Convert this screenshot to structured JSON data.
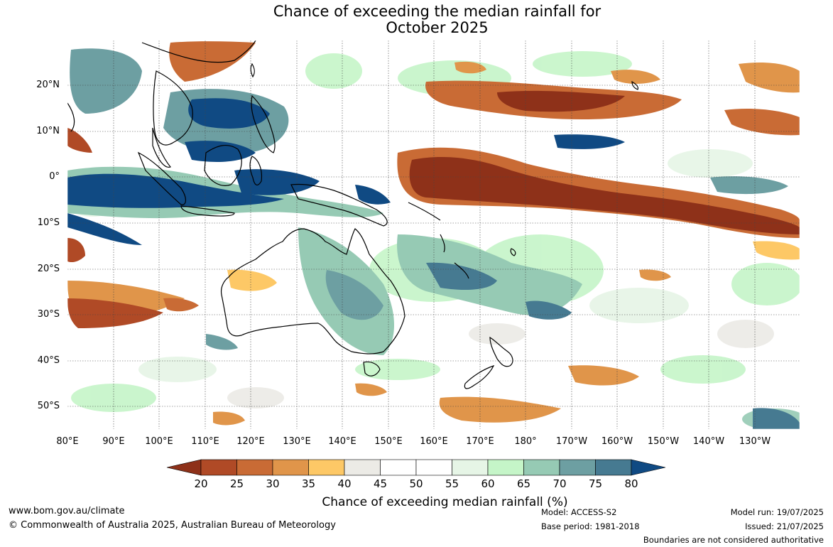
{
  "title": {
    "line1": "Chance of exceeding the median rainfall for",
    "line2": "October 2025"
  },
  "map": {
    "lat_labels": [
      "20°N",
      "10°N",
      "0°",
      "10°S",
      "20°S",
      "30°S",
      "40°S",
      "50°S"
    ],
    "lon_labels": [
      "80°E",
      "90°E",
      "100°E",
      "110°E",
      "120°E",
      "130°E",
      "140°E",
      "150°E",
      "160°E",
      "170°E",
      "180°",
      "170°W",
      "160°W",
      "150°W",
      "140°W",
      "130°W"
    ],
    "ocean_color": "#ffffff",
    "coastline_color": "#000000"
  },
  "colorbar": {
    "ticks": [
      "20",
      "25",
      "30",
      "35",
      "40",
      "45",
      "50",
      "55",
      "60",
      "65",
      "70",
      "75",
      "80"
    ],
    "label": "Chance of exceeding median rainfall (%)",
    "colors": [
      "#8e3119",
      "#b04a26",
      "#c96b35",
      "#e0954a",
      "#fdc866",
      "#ecebe6",
      "#ffffff",
      "#ffffff",
      "#e6f5e6",
      "#c5f5c8",
      "#96cab4",
      "#6d9fa2",
      "#467a91",
      "#104a83"
    ]
  },
  "footer": {
    "website": "www.bom.gov.au/climate",
    "copyright": "© Commonwealth of Australia 2025, Australian Bureau of Meteorology",
    "model": "Model: ACCESS-S2",
    "base_period": "Base period: 1981-2018",
    "model_run": "Model run: 19/07/2025",
    "issued": "Issued: 21/07/2025",
    "disclaimer": "Boundaries are not considered authoritative"
  }
}
